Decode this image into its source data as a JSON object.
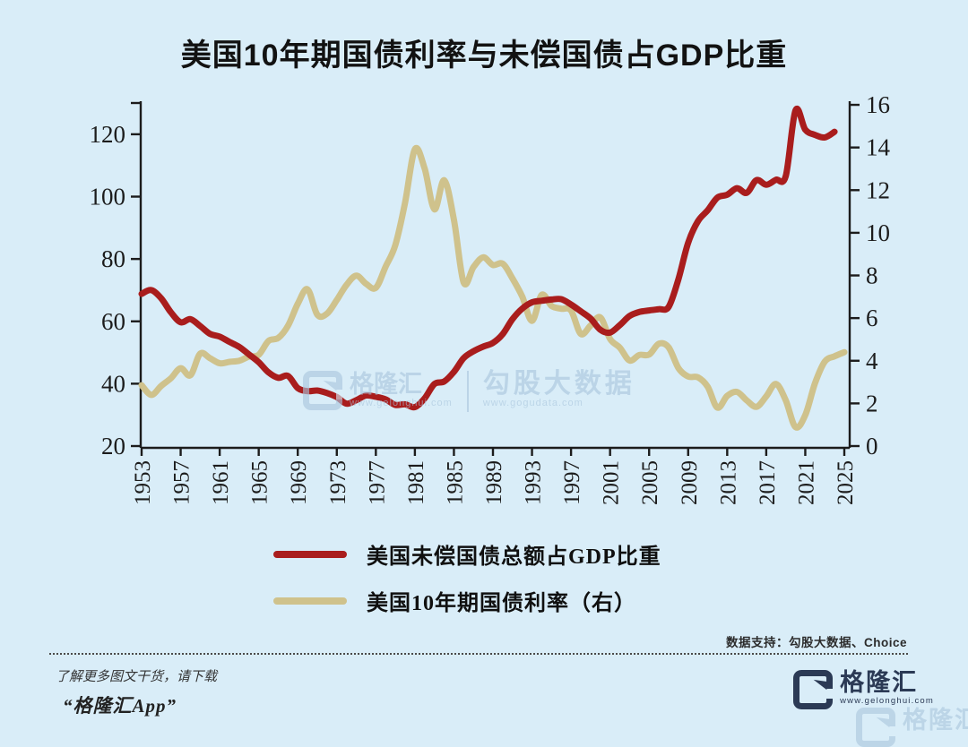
{
  "title": "美国10年期国债利率与未偿国债占GDP比重",
  "colors": {
    "background": "#d9edf8",
    "axis": "#1c1c1c",
    "debt_line": "#a91d1d",
    "yield_line": "#cfc28c",
    "watermark_blue": "#a9c6dd",
    "brand_navy": "#2b3a55"
  },
  "watermark": {
    "logo_letter": "G",
    "brand": "格隆汇",
    "brand_url": "www.gelonghui.com",
    "right_name": "勾股大数据",
    "right_url": "www.gogudata.com"
  },
  "footer": {
    "data_support": "数据支持：勾股大数据、Choice",
    "promo_line1": "了解更多图文干货，请下载",
    "promo_line2": "“格隆汇App”",
    "logo_brand": "格隆汇",
    "logo_url": "www.gelonghui.com"
  },
  "chart_data": {
    "type": "line",
    "title": "美国10年期国债利率与未偿国债占GDP比重",
    "grid": false,
    "legend_position": "bottom",
    "x": [
      1953,
      1954,
      1955,
      1956,
      1957,
      1958,
      1959,
      1960,
      1961,
      1962,
      1963,
      1964,
      1965,
      1966,
      1967,
      1968,
      1969,
      1970,
      1971,
      1972,
      1973,
      1974,
      1975,
      1976,
      1977,
      1978,
      1979,
      1980,
      1981,
      1982,
      1983,
      1984,
      1985,
      1986,
      1987,
      1988,
      1989,
      1990,
      1991,
      1992,
      1993,
      1994,
      1995,
      1996,
      1997,
      1998,
      1999,
      2000,
      2001,
      2002,
      2003,
      2004,
      2005,
      2006,
      2007,
      2008,
      2009,
      2010,
      2011,
      2012,
      2013,
      2014,
      2015,
      2016,
      2017,
      2018,
      2019,
      2020,
      2021,
      2022,
      2023,
      2024,
      2025
    ],
    "x_ticks": [
      1953,
      1957,
      1961,
      1965,
      1969,
      1973,
      1977,
      1981,
      1985,
      1989,
      1993,
      1997,
      2001,
      2005,
      2009,
      2013,
      2017,
      2021,
      2025
    ],
    "left_axis": {
      "ticks": [
        20,
        40,
        60,
        80,
        100,
        120
      ],
      "min": 20,
      "max": 130.6
    },
    "right_axis": {
      "ticks": [
        0,
        2,
        4,
        6,
        8,
        10,
        12,
        14,
        16
      ],
      "min": 0,
      "max": 16.17
    },
    "series": [
      {
        "name": "美国未偿国债总额占GDP比重",
        "axis": "left",
        "color": "#a91d1d",
        "width": 7,
        "values": [
          68.8,
          70.0,
          67.4,
          62.9,
          59.7,
          60.7,
          58.5,
          56.0,
          55.1,
          53.4,
          51.8,
          49.4,
          46.9,
          43.6,
          41.9,
          42.5,
          38.6,
          37.6,
          37.8,
          37.0,
          35.7,
          33.6,
          34.7,
          36.2,
          35.8,
          35.0,
          33.2,
          33.4,
          32.5,
          35.3,
          39.9,
          40.7,
          43.8,
          48.2,
          50.4,
          51.9,
          53.1,
          55.9,
          60.7,
          64.1,
          66.1,
          66.6,
          67.0,
          67.1,
          65.4,
          63.2,
          60.9,
          57.3,
          56.4,
          58.8,
          61.7,
          63.0,
          63.5,
          63.9,
          64.6,
          73.5,
          85.2,
          92.1,
          95.6,
          99.7,
          100.6,
          102.7,
          101.2,
          105.3,
          103.8,
          105.4,
          106.6,
          127.7,
          121.5,
          119.8,
          119.0,
          120.8,
          null
        ]
      },
      {
        "name": "美国10年期国债利率（右）",
        "axis": "right",
        "color": "#cfc28c",
        "width": 7,
        "values": [
          2.85,
          2.4,
          2.82,
          3.18,
          3.65,
          3.32,
          4.33,
          4.12,
          3.88,
          3.95,
          4.0,
          4.19,
          4.28,
          4.93,
          5.07,
          5.64,
          6.67,
          7.35,
          6.16,
          6.21,
          6.85,
          7.56,
          7.99,
          7.61,
          7.42,
          8.41,
          9.43,
          11.43,
          13.92,
          13.01,
          11.1,
          12.46,
          10.62,
          7.67,
          8.39,
          8.85,
          8.49,
          8.55,
          7.86,
          7.01,
          5.87,
          7.09,
          6.57,
          6.44,
          6.35,
          5.26,
          5.65,
          6.03,
          5.02,
          4.61,
          4.01,
          4.27,
          4.29,
          4.8,
          4.63,
          3.66,
          3.26,
          3.22,
          2.78,
          1.8,
          2.35,
          2.54,
          2.14,
          1.84,
          2.33,
          2.91,
          2.14,
          0.89,
          1.45,
          2.95,
          3.96,
          4.21,
          4.4
        ]
      }
    ]
  }
}
